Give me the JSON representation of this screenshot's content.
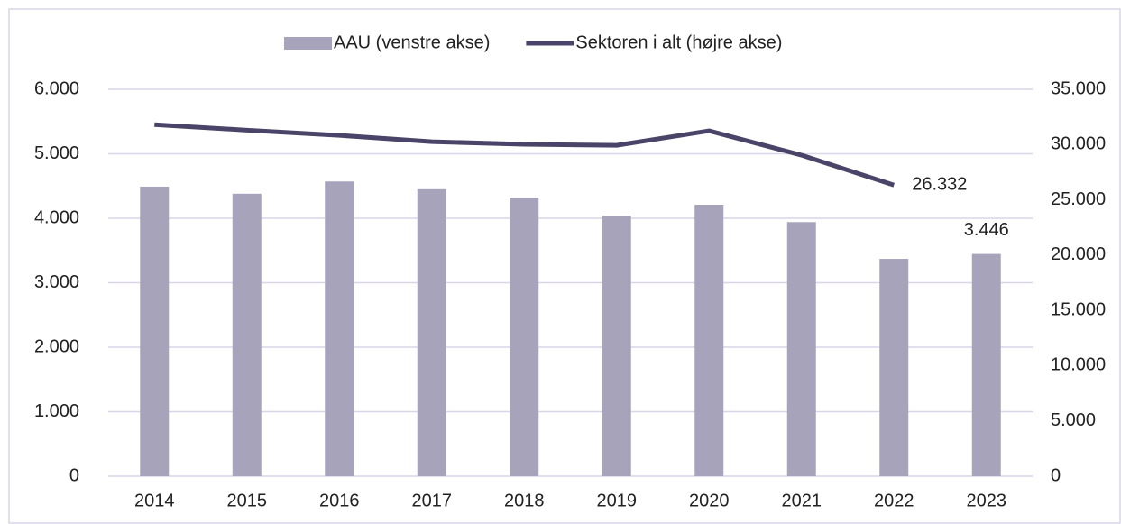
{
  "chart_data": {
    "type": "bar_line",
    "categories": [
      "2014",
      "2015",
      "2016",
      "2017",
      "2018",
      "2019",
      "2020",
      "2021",
      "2022",
      "2023"
    ],
    "series": [
      {
        "name": "AAU (venstre akse)",
        "type": "bar",
        "color": "#a7a3bb",
        "axis": "y",
        "values": [
          4490,
          4380,
          4570,
          4450,
          4320,
          4040,
          4210,
          3940,
          3370,
          3446
        ],
        "value_labels": [
          null,
          null,
          null,
          null,
          null,
          null,
          null,
          null,
          null,
          "3.446"
        ]
      },
      {
        "name": "Sektoren i alt (højre akse)",
        "type": "line",
        "color": "#4a4468",
        "axis": "y2",
        "values": [
          31800,
          31300,
          30830,
          30260,
          30020,
          29930,
          31240,
          29040,
          26332,
          null
        ],
        "value_labels": [
          null,
          null,
          null,
          null,
          null,
          null,
          null,
          null,
          "26.332",
          null
        ]
      }
    ],
    "ylim": [
      0,
      6000
    ],
    "yticks": [
      0,
      {
        "value": 1000,
        "label": "1.000"
      },
      {
        "value": 2000,
        "label": "2.000"
      },
      {
        "value": 3000,
        "label": "3.000"
      },
      {
        "value": 4000,
        "label": "4.000"
      },
      {
        "value": 5000,
        "label": "5.000"
      },
      {
        "value": 6000,
        "label": "6.000"
      }
    ],
    "y2lim": [
      0,
      35000
    ],
    "y2ticks": [
      0,
      {
        "value": 5000,
        "label": "5.000"
      },
      {
        "value": 10000,
        "label": "10.000"
      },
      {
        "value": 15000,
        "label": "15.000"
      },
      {
        "value": 20000,
        "label": "20.000"
      },
      {
        "value": 25000,
        "label": "25.000"
      },
      {
        "value": 30000,
        "label": "30.000"
      },
      {
        "value": 35000,
        "label": "35.000"
      }
    ],
    "grid": true,
    "legend": "top"
  }
}
